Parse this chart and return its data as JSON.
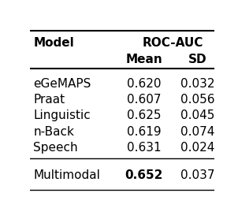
{
  "title_col1": "Model",
  "title_col2": "ROC-AUC",
  "subtitle_col2": "Mean",
  "subtitle_col3": "SD",
  "rows": [
    {
      "model": "eGeMAPS",
      "mean": "0.620",
      "sd": "0.032"
    },
    {
      "model": "Praat",
      "mean": "0.607",
      "sd": "0.056"
    },
    {
      "model": "Linguistic",
      "mean": "0.625",
      "sd": "0.045"
    },
    {
      "model": "n-Back",
      "mean": "0.619",
      "sd": "0.074"
    },
    {
      "model": "Speech",
      "mean": "0.631",
      "sd": "0.024"
    }
  ],
  "footer_row": {
    "model": "Multimodal",
    "mean": "0.652",
    "sd": "0.037"
  },
  "bg_color": "#ffffff",
  "text_color": "#000000",
  "font_size": 11
}
